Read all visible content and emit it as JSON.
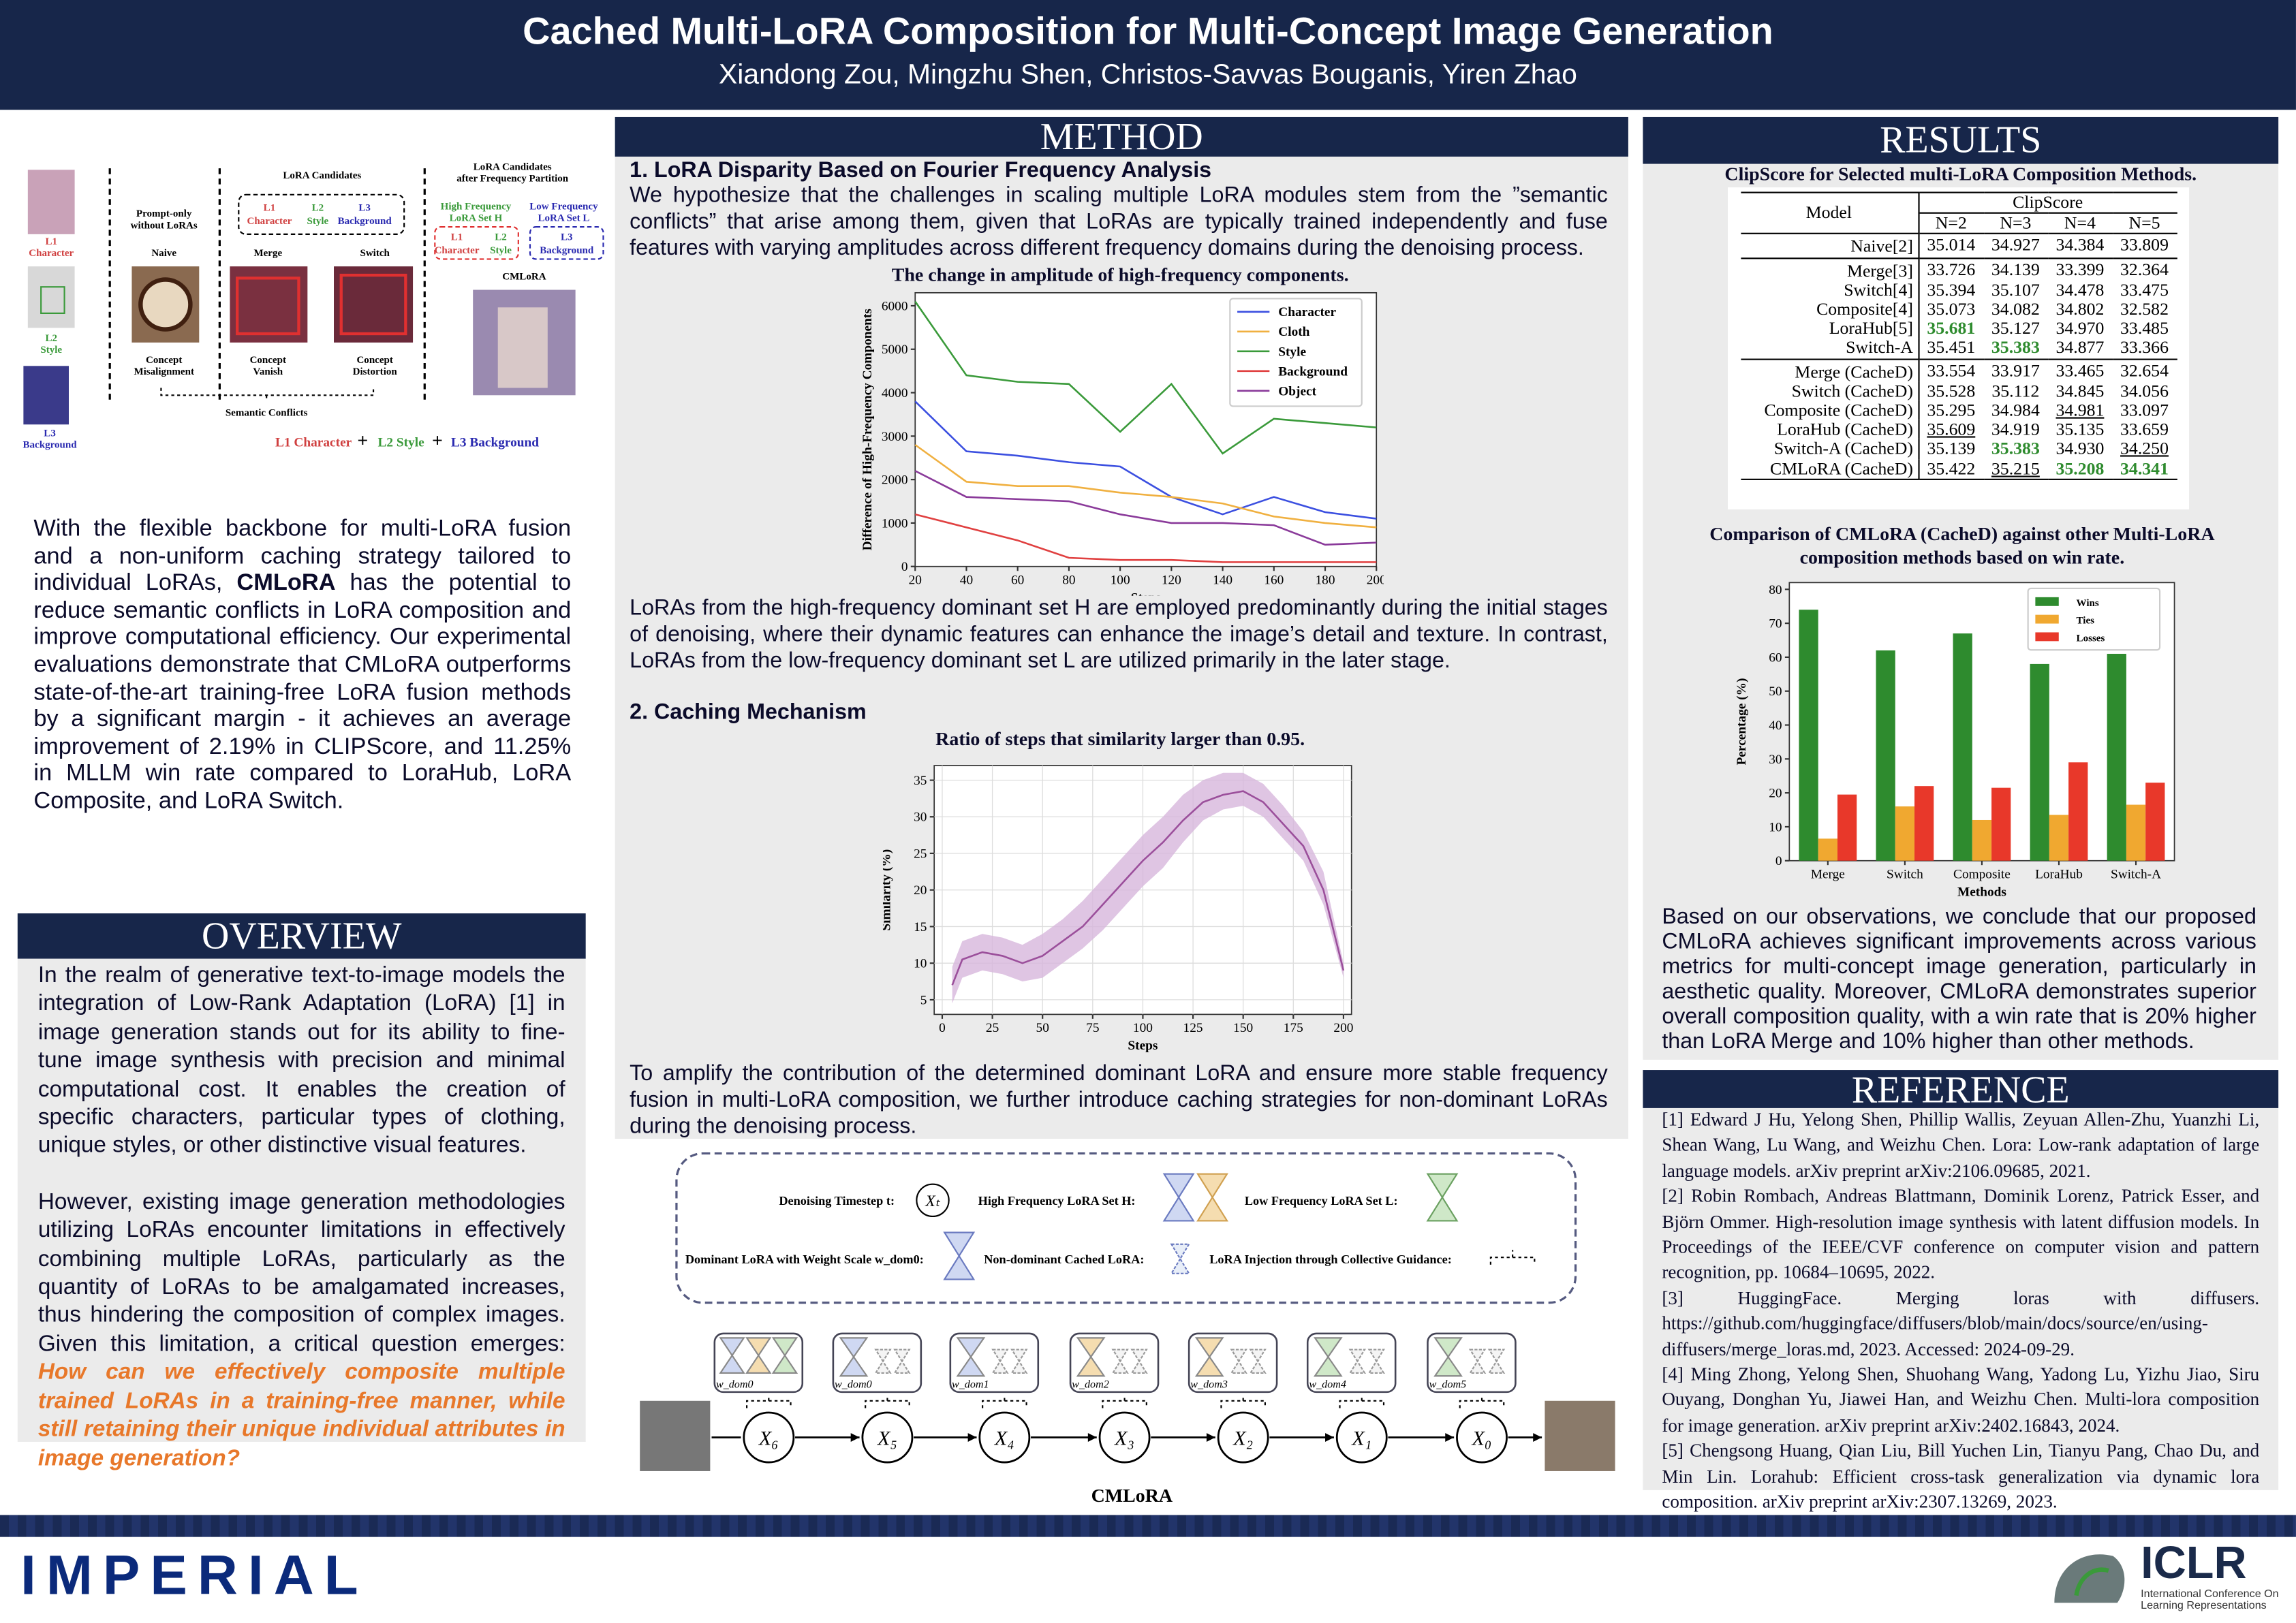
{
  "header": {
    "title": "Cached Multi-LoRA Composition for Multi-Concept Image Generation",
    "authors": "Xiandong Zou, Mingzhu Shen, Christos-Savvas Bouganis, Yiren Zhao"
  },
  "figure": {
    "l1": "L1",
    "character": "Character",
    "l2": "L2",
    "style": "Style",
    "l3": "L3",
    "background": "Background",
    "prompt_only": "Prompt-only",
    "without": "without LoRAs",
    "naive": "Naive",
    "candidates": "LoRA Candidates",
    "merge": "Merge",
    "switch": "Switch",
    "cand_after": "LoRA Candidates",
    "after_freq": "after Frequency Partition",
    "high_set": "High Frequency",
    "high_set2": "LoRA Set H",
    "low_set": "Low Frequency",
    "low_set2": "LoRA Set L",
    "cmlora": "CMLoRA",
    "concept": "Concept",
    "misalignment": "Misalignment",
    "vanish": "Vanish",
    "distortion": "Distortion",
    "conflicts": "Semantic Conflicts",
    "legend1": "L1 Character",
    "plus": "+",
    "legend2": "L2 Style",
    "legend3": "L3 Background"
  },
  "intro": {
    "before": "With the flexible backbone for multi-LoRA fusion and a non-uniform caching strategy tailored to individual LoRAs, ",
    "highlight": "CMLoRA",
    "after": " has the potential to reduce semantic conflicts in LoRA composition and improve computational efficiency. Our experimental evaluations demonstrate that CMLoRA outperforms state-of-the-art training-free LoRA fusion methods by a significant margin - it achieves an average improvement of 2.19% in CLIPScore, and 11.25% in MLLM win rate compared to LoraHub, LoRA Composite, and LoRA Switch."
  },
  "overview": {
    "heading": "OVERVIEW",
    "p1": "In the realm of generative text-to-image models the integration of Low-Rank Adaptation (LoRA) [1] in image generation stands out for its ability to fine-tune image synthesis with precision and minimal computational cost.  It enables the creation of specific characters, particular types of clothing, unique styles, or other distinctive visual features.",
    "p2": "However, existing image generation methodologies utilizing LoRAs encounter limitations in effectively combining multiple LoRAs, particularly as the quantity of LoRAs to be amalgamated increases, thus hindering the composition of complex images. Given this limitation, a critical question emerges: ",
    "question": "How can we effectively composite multiple trained LoRAs in a training-free manner, while still retaining their unique individual attributes in image generation?"
  },
  "method": {
    "heading": "METHOD",
    "s1_title": "1. LoRA Disparity Based on Fourier Frequency Analysis",
    "s1_text": "We hypothesize that the challenges in scaling multiple LoRA modules stem from the ”semantic conflicts” that arise among them, given that LoRAs are typically trained independently and fuse features with varying amplitudes across different frequency domains during the denoising process.",
    "chart1": {
      "type": "line",
      "title": "The change in amplitude of high-frequency components.",
      "x_label": "Steps",
      "y_label": "Difference of High-Frequency Components",
      "x": [
        20,
        40,
        60,
        80,
        100,
        120,
        140,
        160,
        180,
        200
      ],
      "xlim": [
        20,
        200
      ],
      "xticks": [
        20,
        40,
        60,
        80,
        100,
        120,
        140,
        160,
        180,
        200
      ],
      "ylim": [
        0,
        6300
      ],
      "yticks": [
        0,
        1000,
        2000,
        3000,
        4000,
        5000,
        6000
      ],
      "grid": false,
      "legend": "upper right",
      "series": [
        {
          "name": "Character",
          "color": "#3b4fe0",
          "values": [
            3800,
            2650,
            2550,
            2400,
            2300,
            1600,
            1200,
            1600,
            1250,
            1100
          ]
        },
        {
          "name": "Cloth",
          "color": "#f0b040",
          "values": [
            2800,
            1950,
            1850,
            1850,
            1700,
            1600,
            1450,
            1150,
            1000,
            900
          ]
        },
        {
          "name": "Style",
          "color": "#3a9a3a",
          "values": [
            6100,
            4400,
            4250,
            4200,
            3100,
            4200,
            2600,
            3400,
            3300,
            3200
          ]
        },
        {
          "name": "Background",
          "color": "#e04040",
          "values": [
            1200,
            900,
            600,
            200,
            150,
            150,
            100,
            100,
            100,
            100
          ]
        },
        {
          "name": "Object",
          "color": "#8a3a9a",
          "values": [
            2200,
            1600,
            1550,
            1500,
            1200,
            1000,
            1000,
            950,
            500,
            550
          ]
        }
      ]
    },
    "s1_text2": "LoRAs from the high-frequency dominant set H are employed predominantly during the initial stages of denoising, where their dynamic features can enhance the image’s detail and texture. In contrast, LoRAs from the low-frequency dominant set L are utilized primarily in the later stage.",
    "s2_title": "2. Caching Mechanism",
    "chart2": {
      "type": "band-line",
      "title": "Ratio of steps that similarity larger than 0.95.",
      "x_label": "Steps",
      "y_label": "Similarity (%)",
      "x": [
        5,
        10,
        20,
        30,
        40,
        50,
        60,
        70,
        80,
        90,
        100,
        110,
        120,
        130,
        140,
        150,
        160,
        170,
        180,
        190,
        200
      ],
      "values": [
        7,
        10.5,
        11.5,
        11,
        10,
        11,
        13,
        15,
        18,
        21,
        24,
        26.5,
        29.5,
        32,
        33,
        33.5,
        32,
        29,
        26,
        20,
        9
      ],
      "band": {
        "lower": [
          4.5,
          8,
          9,
          8.5,
          7.5,
          8,
          10,
          12,
          14.5,
          17.5,
          20.5,
          23,
          26.5,
          29.5,
          31,
          31.5,
          30,
          27,
          24,
          18,
          8
        ],
        "upper": [
          9.5,
          13,
          14,
          13.5,
          12.5,
          14,
          16,
          18.5,
          21.5,
          24.5,
          27.5,
          30,
          33,
          35,
          36,
          36,
          34.5,
          31.5,
          28,
          22.5,
          10
        ]
      },
      "color": "#9b4f9b",
      "band_color": "#d7b6dc",
      "xlim": [
        -4,
        204
      ],
      "xticks": [
        0,
        25,
        50,
        75,
        100,
        125,
        150,
        175,
        200
      ],
      "ylim": [
        3,
        37
      ],
      "yticks": [
        5,
        10,
        15,
        20,
        25,
        30,
        35
      ],
      "grid": true
    },
    "s2_text": "To amplify the contribution of the determined dominant LoRA and ensure more stable frequency fusion in multi-LoRA composition, we further introduce caching strategies for non-dominant LoRAs during the denoising process.",
    "diagram": {
      "timestep": "Denoising Timestep t:",
      "xt": "Xₜ",
      "high": "High Frequency LoRA Set H:",
      "low": "Low Frequency LoRA Set L:",
      "dominant": "Dominant LoRA with Weight Scale w_dom0:",
      "nondominant": "Non-dominant Cached LoRA:",
      "injection": "LoRA Injection through Collective Guidance:",
      "w": "w_dom0",
      "nodes": [
        "X₆",
        "X₅",
        "X₄",
        "X₃",
        "X₂",
        "X₁",
        "X₀"
      ],
      "weights": [
        "w_dom0",
        "w_dom0",
        "w_dom1",
        "w_dom2",
        "w_dom3",
        "w_dom4",
        "w_dom5"
      ],
      "caption": "CMLoRA"
    }
  },
  "results": {
    "heading": "RESULTS",
    "table": {
      "title": "ClipScore for Selected multi-LoRA Composition Methods.",
      "model_header": "Model",
      "group_header": "ClipScore",
      "columns": [
        "N=2",
        "N=3",
        "N=4",
        "N=5"
      ],
      "groups": [
        [
          {
            "model": "Naive[2]",
            "scores": [
              "35.014",
              "34.927",
              "34.384",
              "33.809"
            ],
            "bold": [],
            "underline": []
          }
        ],
        [
          {
            "model": "Merge[3]",
            "scores": [
              "33.726",
              "34.139",
              "33.399",
              "32.364"
            ],
            "bold": [],
            "underline": []
          },
          {
            "model": "Switch[4]",
            "scores": [
              "35.394",
              "35.107",
              "34.478",
              "33.475"
            ],
            "bold": [],
            "underline": []
          },
          {
            "model": "Composite[4]",
            "scores": [
              "35.073",
              "34.082",
              "34.802",
              "32.582"
            ],
            "bold": [],
            "underline": []
          },
          {
            "model": "LoraHub[5]",
            "scores": [
              "35.681",
              "35.127",
              "34.970",
              "33.485"
            ],
            "bold": [
              0
            ],
            "underline": []
          },
          {
            "model": "Switch-A",
            "scores": [
              "35.451",
              "35.383",
              "34.877",
              "33.366"
            ],
            "bold": [
              1
            ],
            "underline": []
          }
        ],
        [
          {
            "model": "Merge (CacheD)",
            "scores": [
              "33.554",
              "33.917",
              "33.465",
              "32.654"
            ],
            "bold": [],
            "underline": []
          },
          {
            "model": "Switch (CacheD)",
            "scores": [
              "35.528",
              "35.112",
              "34.845",
              "34.056"
            ],
            "bold": [],
            "underline": []
          },
          {
            "model": "Composite (CacheD)",
            "scores": [
              "35.295",
              "34.984",
              "34.981",
              "33.097"
            ],
            "bold": [],
            "underline": [
              2
            ]
          },
          {
            "model": "LoraHub (CacheD)",
            "scores": [
              "35.609",
              "34.919",
              "35.135",
              "33.659"
            ],
            "bold": [],
            "underline": [
              0
            ]
          },
          {
            "model": "Switch-A (CacheD)",
            "scores": [
              "35.139",
              "35.383",
              "34.930",
              "34.250"
            ],
            "bold": [
              1
            ],
            "underline": [
              3
            ]
          },
          {
            "model": "CMLoRA (CacheD)",
            "scores": [
              "35.422",
              "35.215",
              "35.208",
              "34.341"
            ],
            "bold": [
              2,
              3
            ],
            "underline": [
              1
            ]
          }
        ]
      ]
    },
    "chart": {
      "type": "bar",
      "title": "Comparison of CMLoRA (CacheD) against other Multi-LoRA composition methods based on win rate.",
      "x_label": "Methods",
      "y_label": "Percentage (%)",
      "categories": [
        "Merge",
        "Switch",
        "Composite",
        "LoraHub",
        "Switch-A"
      ],
      "series": [
        {
          "name": "Wins",
          "color": "#2e8b2e",
          "values": [
            74,
            62,
            67,
            58,
            61
          ]
        },
        {
          "name": "Ties",
          "color": "#f0a830",
          "values": [
            6.5,
            16,
            12,
            13.5,
            16.5
          ]
        },
        {
          "name": "Losses",
          "color": "#e8382a",
          "values": [
            19.5,
            22,
            21.5,
            29,
            23
          ]
        }
      ],
      "ylim": [
        0,
        82
      ],
      "yticks": [
        0,
        10,
        20,
        30,
        40,
        50,
        60,
        70,
        80
      ],
      "grid": false,
      "legend": "upper right"
    },
    "text": "Based on our observations, we conclude that our proposed CMLoRA achieves significant improvements across various metrics for multi-concept image generation, particularly in aesthetic quality. Moreover, CMLoRA demonstrates superior overall composition quality, with a win rate that is 20% higher than LoRA Merge and 10% higher than other methods."
  },
  "reference": {
    "heading": "REFERENCE",
    "items": [
      "[1] Edward J Hu, Yelong Shen, Phillip Wallis, Zeyuan Allen-Zhu, Yuanzhi Li, Shean Wang, Lu Wang, and Weizhu Chen. Lora: Low-rank adaptation of large language models. arXiv preprint arXiv:2106.09685, 2021.",
      "[2] Robin Rombach, Andreas Blattmann, Dominik Lorenz, Patrick Esser, and Björn Ommer. High-resolution image synthesis with latent diffusion models. In Proceedings of the IEEE/CVF conference on computer vision and pattern recognition, pp. 10684–10695, 2022.",
      "[3] HuggingFace. Merging loras with diffusers. https://github.com/huggingface/diffusers/blob/main/docs/source/en/using-diffusers/merge_loras.md, 2023. Accessed: 2024-09-29.",
      "[4] Ming Zhong, Yelong Shen, Shuohang Wang, Yadong Lu, Yizhu Jiao, Siru Ouyang, Donghan Yu, Jiawei Han, and Weizhu Chen. Multi-lora composition for image generation. arXiv preprint arXiv:2402.16843, 2024.",
      "[5] Chengsong Huang, Qian Liu, Bill Yuchen Lin, Tianyu Pang, Chao Du, and Min Lin. Lorahub: Efficient cross-task generalization via dynamic lora composition. arXiv preprint arXiv:2307.13269, 2023."
    ]
  },
  "footer": {
    "left": "IMPERIAL",
    "logo": "ICLR",
    "logo_sub1": "International Conference On",
    "logo_sub2": "Learning Representations"
  }
}
